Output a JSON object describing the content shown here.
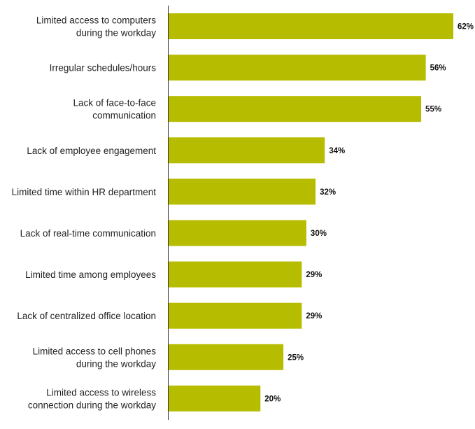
{
  "chart_data": {
    "type": "bar",
    "orientation": "horizontal",
    "categories": [
      [
        "Limited access to computers",
        "during the workday"
      ],
      [
        "Irregular schedules/hours"
      ],
      [
        "Lack of face-to-face",
        "communication"
      ],
      [
        "Lack of employee engagement"
      ],
      [
        "Limited time within HR department"
      ],
      [
        "Lack of real-time communication"
      ],
      [
        "Limited time among employees"
      ],
      [
        "Lack of centralized office location"
      ],
      [
        "Limited access to cell phones",
        "during the workday"
      ],
      [
        "Limited access to wireless",
        "connection during the workday"
      ]
    ],
    "values": [
      62,
      56,
      55,
      34,
      32,
      30,
      29,
      29,
      25,
      20
    ],
    "value_labels": [
      "62%",
      "56%",
      "55%",
      "34%",
      "32%",
      "30%",
      "29%",
      "29%",
      "25%",
      "20%"
    ],
    "unit": "%",
    "title": "",
    "xlabel": "",
    "ylabel": "",
    "xlim": [
      0,
      62
    ],
    "grid": false,
    "bar_color": "#b6bd00",
    "axis_color": "#333333"
  }
}
